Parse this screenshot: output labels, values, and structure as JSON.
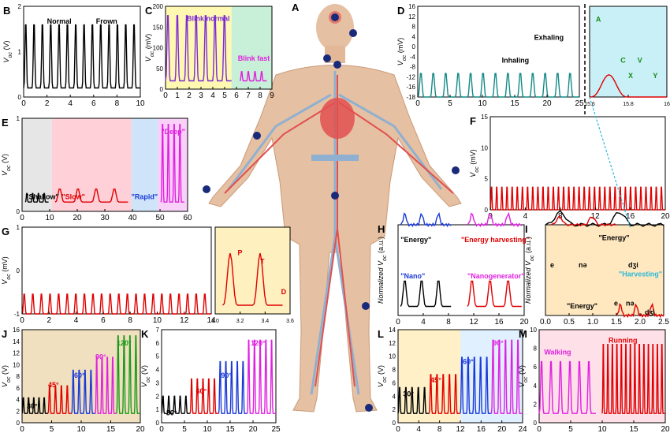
{
  "figure": {
    "center_label": "A",
    "panels": [
      {
        "id": "B",
        "label": "B",
        "ylabel": "V",
        "ysub": "oc",
        "yunit": " (V)",
        "xticks": [
          "0",
          "2",
          "4",
          "6",
          "8",
          "10"
        ],
        "yticks": [
          "2",
          "1",
          "0"
        ],
        "notes": [
          {
            "text": "Normal",
            "color": "#000"
          },
          {
            "text": "Frown",
            "color": "#000"
          }
        ]
      },
      {
        "id": "C",
        "label": "C",
        "ylabel": "V",
        "ysub": "oc",
        "yunit": " (mV)",
        "xticks": [
          "0",
          "1",
          "2",
          "3",
          "4",
          "5",
          "6",
          "7",
          "8",
          "9"
        ],
        "yticks": [
          "200",
          "150",
          "100",
          "50",
          "0"
        ],
        "notes": [
          {
            "text": "Blink normal",
            "color": "#7b2cd6"
          },
          {
            "text": "Blink fast",
            "color": "#e020e0"
          }
        ]
      },
      {
        "id": "D",
        "label": "D",
        "ylabel": "V",
        "ysub": "oc",
        "yunit": " (mV)",
        "xticks": [
          "0",
          "5",
          "10",
          "15",
          "20",
          "25"
        ],
        "yticks": [
          "16",
          "12",
          "8",
          "4",
          "0",
          "-4",
          "-8",
          "-12",
          "-16",
          "-18"
        ],
        "notes": [
          {
            "text": "Inhaling",
            "color": "#000"
          },
          {
            "text": "Exhaling",
            "color": "#000"
          }
        ]
      },
      {
        "id": "D2",
        "label": "",
        "ylabel": "",
        "ysub": "",
        "yunit": "",
        "xticks": [
          "15.6",
          "15.8",
          "16"
        ],
        "yticks": [],
        "notes": [
          {
            "text": "A",
            "color": "#1a8a1a"
          },
          {
            "text": "C",
            "color": "#1a8a1a"
          },
          {
            "text": "V",
            "color": "#1a8a1a"
          },
          {
            "text": "X",
            "color": "#1a8a1a"
          },
          {
            "text": "Y",
            "color": "#1a8a1a"
          }
        ]
      },
      {
        "id": "E",
        "label": "E",
        "ylabel": "V",
        "ysub": "oc",
        "yunit": " (V)",
        "xticks": [
          "0",
          "10",
          "20",
          "30",
          "40",
          "50",
          "60"
        ],
        "yticks": [
          "1",
          "0"
        ],
        "notes": [
          {
            "text": "\"Shallow\"",
            "color": "#000"
          },
          {
            "text": "\"Slow\"",
            "color": "#e00000"
          },
          {
            "text": "\"Rapid\"",
            "color": "#1a3ad8"
          },
          {
            "text": "\"Deep\"",
            "color": "#e020e0"
          }
        ]
      },
      {
        "id": "F",
        "label": "F",
        "ylabel": "V",
        "ysub": "oc",
        "yunit": " (mV)",
        "xticks": [
          "0",
          "4",
          "8",
          "12",
          "16",
          "20"
        ],
        "yticks": [
          "15",
          "10",
          "5",
          "0"
        ],
        "notes": []
      },
      {
        "id": "G",
        "label": "G",
        "ylabel": "V",
        "ysub": "oc",
        "yunit": " (mV)",
        "xticks": [
          "0",
          "2",
          "4",
          "6",
          "8",
          "10",
          "12",
          "14"
        ],
        "yticks": [
          "1",
          "0",
          "-1"
        ],
        "notes": []
      },
      {
        "id": "G2",
        "label": "",
        "ylabel": "",
        "ysub": "",
        "yunit": "",
        "xticks": [
          "3.0",
          "3.2",
          "3.4",
          "3.6"
        ],
        "yticks": [],
        "notes": [
          {
            "text": "P",
            "color": "#e00000"
          },
          {
            "text": "T",
            "color": "#e00000"
          },
          {
            "text": "D",
            "color": "#e00000"
          }
        ]
      },
      {
        "id": "H",
        "label": "H",
        "ylabel": "Normalized V",
        "ysub": "oc",
        "yunit": " (a.u.)",
        "xticks": [
          "0",
          "4",
          "8",
          "12",
          "16",
          "20"
        ],
        "yticks": [],
        "notes": [
          {
            "text": "\"Energy\"",
            "color": "#000"
          },
          {
            "text": "\"Energy harvesting\"",
            "color": "#e00000"
          },
          {
            "text": "\"Nano\"",
            "color": "#1a3ad8"
          },
          {
            "text": "\"Nanogenerator\"",
            "color": "#e020e0"
          }
        ]
      },
      {
        "id": "I",
        "label": "I",
        "ylabel": "Normalized V",
        "ysub": "oc",
        "yunit": " (a.u.)",
        "xticks": [
          "0.0",
          "0.5",
          "1.0",
          "1.5",
          "2.0",
          "2.5"
        ],
        "yticks": [],
        "notes": [
          {
            "text": "\"Energy\"",
            "color": "#000"
          },
          {
            "text": "e",
            "color": "#000"
          },
          {
            "text": "nə",
            "color": "#000"
          },
          {
            "text": "dʒi",
            "color": "#000"
          },
          {
            "text": "\"Energy\"",
            "color": "#000"
          },
          {
            "text": "\"Harvesting\"",
            "color": "#2ab8d8"
          },
          {
            "text": "e",
            "color": "#000"
          },
          {
            "text": "nə",
            "color": "#000"
          },
          {
            "text": "dʒi",
            "color": "#000"
          }
        ]
      },
      {
        "id": "J",
        "label": "J",
        "ylabel": "V",
        "ysub": "oc",
        "yunit": " (V)",
        "xticks": [
          "0",
          "5",
          "10",
          "15",
          "20"
        ],
        "yticks": [
          "16",
          "14",
          "12",
          "10",
          "8",
          "6",
          "4",
          "2",
          "0"
        ],
        "notes": [
          {
            "text": "30°",
            "color": "#000"
          },
          {
            "text": "45°",
            "color": "#e00000"
          },
          {
            "text": "60°",
            "color": "#1a3ad8"
          },
          {
            "text": "90°",
            "color": "#e020e0"
          },
          {
            "text": "120°",
            "color": "#1a9a1a"
          }
        ]
      },
      {
        "id": "K",
        "label": "K",
        "ylabel": "V",
        "ysub": "oc",
        "yunit": " (V)",
        "xticks": [
          "0",
          "5",
          "10",
          "15",
          "20",
          "25"
        ],
        "yticks": [
          "7",
          "6",
          "5",
          "4",
          "3",
          "2",
          "1",
          "0"
        ],
        "notes": [
          {
            "text": "30°",
            "color": "#000"
          },
          {
            "text": "60°",
            "color": "#e00000"
          },
          {
            "text": "90°",
            "color": "#1a3ad8"
          },
          {
            "text": "120°",
            "color": "#e020e0"
          }
        ]
      },
      {
        "id": "L",
        "label": "L",
        "ylabel": "V",
        "ysub": "oc",
        "yunit": " (V)",
        "xticks": [
          "0",
          "4",
          "8",
          "12",
          "16",
          "20",
          "24"
        ],
        "yticks": [
          "14",
          "12",
          "10",
          "8",
          "6",
          "4",
          "2",
          "0"
        ],
        "notes": [
          {
            "text": "30°",
            "color": "#000"
          },
          {
            "text": "45°",
            "color": "#e00000"
          },
          {
            "text": "60°",
            "color": "#1a3ad8"
          },
          {
            "text": "90°",
            "color": "#e020e0"
          }
        ]
      },
      {
        "id": "M",
        "label": "M",
        "ylabel": "V",
        "ysub": "oc",
        "yunit": " (V)",
        "xticks": [
          "0",
          "5",
          "10",
          "15",
          "20"
        ],
        "yticks": [
          "10",
          "8",
          "6",
          "4",
          "2",
          "0"
        ],
        "notes": [
          {
            "text": "Walking",
            "color": "#e020e0"
          },
          {
            "text": "Running",
            "color": "#e00000"
          }
        ]
      }
    ]
  },
  "colors": {
    "black": "#000000",
    "purple": "#7b2cd6",
    "teal": "#138a86",
    "red": "#e00000",
    "blue": "#1a3ad8",
    "magenta": "#e020e0",
    "green": "#1a9a1a",
    "cyan": "#2ab8d8",
    "body": "#e6c0a2",
    "vein": "#8fb0d0",
    "artery": "#e05050"
  }
}
